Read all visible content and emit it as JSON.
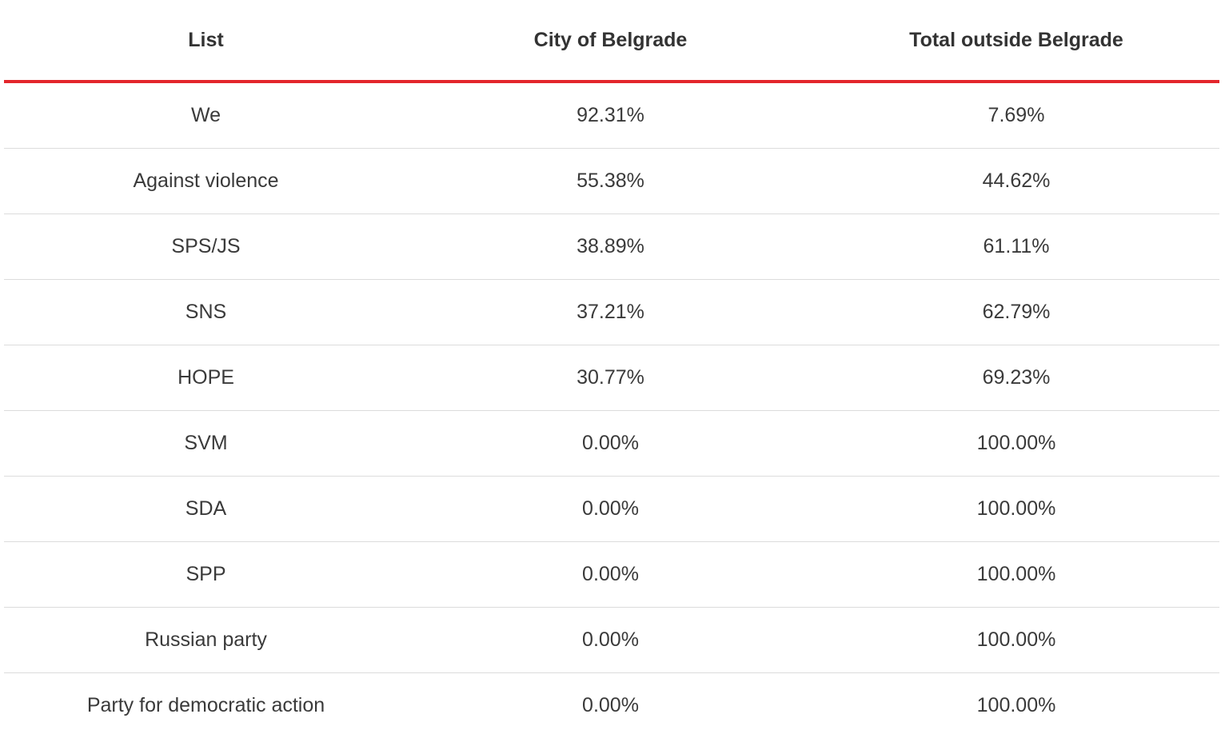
{
  "table": {
    "headers": [
      "List",
      "City of Belgrade",
      "Total outside Belgrade"
    ],
    "rows": [
      [
        "We",
        "92.31%",
        "7.69%"
      ],
      [
        "Against violence",
        "55.38%",
        "44.62%"
      ],
      [
        "SPS/JS",
        "38.89%",
        "61.11%"
      ],
      [
        "SNS",
        "37.21%",
        "62.79%"
      ],
      [
        "HOPE",
        "30.77%",
        "69.23%"
      ],
      [
        "SVM",
        "0.00%",
        "100.00%"
      ],
      [
        "SDA",
        "0.00%",
        "100.00%"
      ],
      [
        "SPP",
        "0.00%",
        "100.00%"
      ],
      [
        "Russian party",
        "0.00%",
        "100.00%"
      ],
      [
        "Party for democratic action",
        "0.00%",
        "100.00%"
      ]
    ]
  },
  "colors": {
    "header_rule": "#e3262c",
    "row_divider": "#dcdcdc",
    "text": "#333333"
  }
}
